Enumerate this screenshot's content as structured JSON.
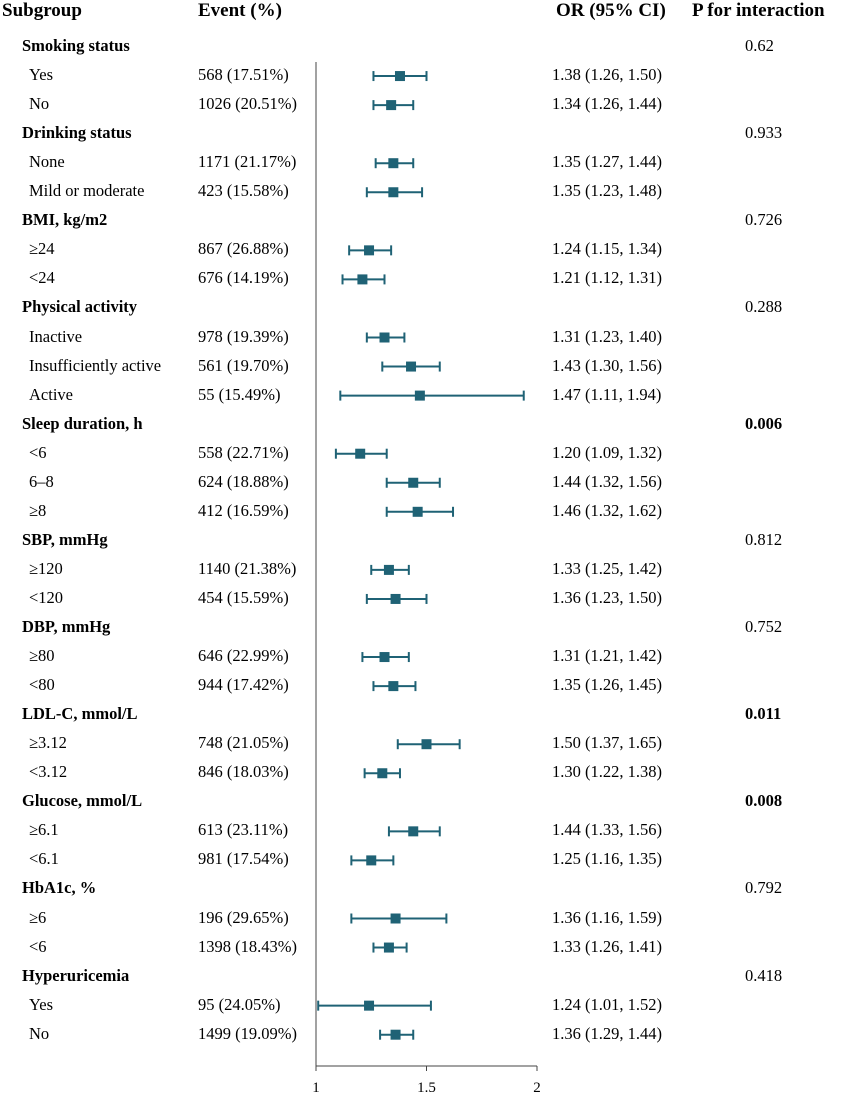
{
  "headers": {
    "subgroup": "Subgroup",
    "event": "Event (%)",
    "orci": "OR (95% CI)",
    "pint": "P for interaction"
  },
  "colors": {
    "marker": "#1f6275",
    "axis": "#444444"
  },
  "chart_data": {
    "type": "forest",
    "title": "",
    "xlabel": "",
    "xlim": [
      1,
      2
    ],
    "xticks": [
      1,
      1.5,
      2
    ],
    "xtick_labels": [
      "1",
      "1.5",
      "2"
    ],
    "reference_line": 1,
    "groups": [
      {
        "label": "Smoking status",
        "p_interaction": "0.62",
        "bold": false,
        "rows": [
          {
            "label": "Yes",
            "event": "568 (17.51%)",
            "or": 1.38,
            "lo": 1.26,
            "hi": 1.5,
            "text": "1.38 (1.26, 1.50)"
          },
          {
            "label": "No",
            "event": "1026 (20.51%)",
            "or": 1.34,
            "lo": 1.26,
            "hi": 1.44,
            "text": "1.34 (1.26, 1.44)"
          }
        ]
      },
      {
        "label": "Drinking status",
        "p_interaction": "0.933",
        "bold": false,
        "rows": [
          {
            "label": "None",
            "event": "1171 (21.17%)",
            "or": 1.35,
            "lo": 1.27,
            "hi": 1.44,
            "text": "1.35 (1.27, 1.44)"
          },
          {
            "label": "Mild or moderate",
            "event": "423 (15.58%)",
            "or": 1.35,
            "lo": 1.23,
            "hi": 1.48,
            "text": "1.35 (1.23, 1.48)"
          }
        ]
      },
      {
        "label": "BMI, kg/m2",
        "p_interaction": "0.726",
        "bold": false,
        "rows": [
          {
            "label": "≥24",
            "event": "867 (26.88%)",
            "or": 1.24,
            "lo": 1.15,
            "hi": 1.34,
            "text": "1.24 (1.15, 1.34)"
          },
          {
            "label": "<24",
            "event": "676 (14.19%)",
            "or": 1.21,
            "lo": 1.12,
            "hi": 1.31,
            "text": "1.21 (1.12, 1.31)"
          }
        ]
      },
      {
        "label": "Physical activity",
        "p_interaction": "0.288",
        "bold": false,
        "rows": [
          {
            "label": "Inactive",
            "event": "978 (19.39%)",
            "or": 1.31,
            "lo": 1.23,
            "hi": 1.4,
            "text": "1.31 (1.23, 1.40)"
          },
          {
            "label": "Insufficiently active",
            "event": "561 (19.70%)",
            "or": 1.43,
            "lo": 1.3,
            "hi": 1.56,
            "text": "1.43 (1.30, 1.56)"
          },
          {
            "label": "Active",
            "event": "55 (15.49%)",
            "or": 1.47,
            "lo": 1.11,
            "hi": 1.94,
            "text": "1.47 (1.11, 1.94)"
          }
        ]
      },
      {
        "label": "Sleep duration, h",
        "p_interaction": "0.006",
        "bold": true,
        "rows": [
          {
            "label": "<6",
            "event": "558 (22.71%)",
            "or": 1.2,
            "lo": 1.09,
            "hi": 1.32,
            "text": "1.20 (1.09, 1.32)"
          },
          {
            "label": "6–8",
            "event": "624 (18.88%)",
            "or": 1.44,
            "lo": 1.32,
            "hi": 1.56,
            "text": "1.44 (1.32, 1.56)"
          },
          {
            "label": "≥8",
            "event": "412 (16.59%)",
            "or": 1.46,
            "lo": 1.32,
            "hi": 1.62,
            "text": "1.46 (1.32, 1.62)"
          }
        ]
      },
      {
        "label": "SBP, mmHg",
        "p_interaction": "0.812",
        "bold": false,
        "rows": [
          {
            "label": "≥120",
            "event": "1140 (21.38%)",
            "or": 1.33,
            "lo": 1.25,
            "hi": 1.42,
            "text": "1.33 (1.25, 1.42)"
          },
          {
            "label": "<120",
            "event": "454 (15.59%)",
            "or": 1.36,
            "lo": 1.23,
            "hi": 1.5,
            "text": "1.36 (1.23, 1.50)"
          }
        ]
      },
      {
        "label": "DBP, mmHg",
        "p_interaction": "0.752",
        "bold": false,
        "rows": [
          {
            "label": "≥80",
            "event": "646 (22.99%)",
            "or": 1.31,
            "lo": 1.21,
            "hi": 1.42,
            "text": "1.31 (1.21, 1.42)"
          },
          {
            "label": "<80",
            "event": "944 (17.42%)",
            "or": 1.35,
            "lo": 1.26,
            "hi": 1.45,
            "text": "1.35 (1.26, 1.45)"
          }
        ]
      },
      {
        "label": "LDL-C, mmol/L",
        "p_interaction": "0.011",
        "bold": true,
        "rows": [
          {
            "label": "≥3.12",
            "event": "748 (21.05%)",
            "or": 1.5,
            "lo": 1.37,
            "hi": 1.65,
            "text": "1.50 (1.37, 1.65)"
          },
          {
            "label": "<3.12",
            "event": "846 (18.03%)",
            "or": 1.3,
            "lo": 1.22,
            "hi": 1.38,
            "text": "1.30 (1.22, 1.38)"
          }
        ]
      },
      {
        "label": "Glucose, mmol/L",
        "p_interaction": "0.008",
        "bold": true,
        "rows": [
          {
            "label": "≥6.1",
            "event": "613 (23.11%)",
            "or": 1.44,
            "lo": 1.33,
            "hi": 1.56,
            "text": "1.44 (1.33, 1.56)"
          },
          {
            "label": "<6.1",
            "event": "981 (17.54%)",
            "or": 1.25,
            "lo": 1.16,
            "hi": 1.35,
            "text": "1.25 (1.16, 1.35)"
          }
        ]
      },
      {
        "label": "HbA1c, %",
        "p_interaction": "0.792",
        "bold": false,
        "rows": [
          {
            "label": "≥6",
            "event": "196 (29.65%)",
            "or": 1.36,
            "lo": 1.16,
            "hi": 1.59,
            "text": "1.36 (1.16, 1.59)"
          },
          {
            "label": "<6",
            "event": "1398 (18.43%)",
            "or": 1.33,
            "lo": 1.26,
            "hi": 1.41,
            "text": "1.33 (1.26, 1.41)"
          }
        ]
      },
      {
        "label": "Hyperuricemia",
        "p_interaction": "0.418",
        "bold": false,
        "rows": [
          {
            "label": "Yes",
            "event": "95 (24.05%)",
            "or": 1.24,
            "lo": 1.01,
            "hi": 1.52,
            "text": "1.24 (1.01, 1.52)"
          },
          {
            "label": "No",
            "event": "1499 (19.09%)",
            "or": 1.36,
            "lo": 1.29,
            "hi": 1.44,
            "text": "1.36 (1.29, 1.44)"
          }
        ]
      }
    ]
  }
}
